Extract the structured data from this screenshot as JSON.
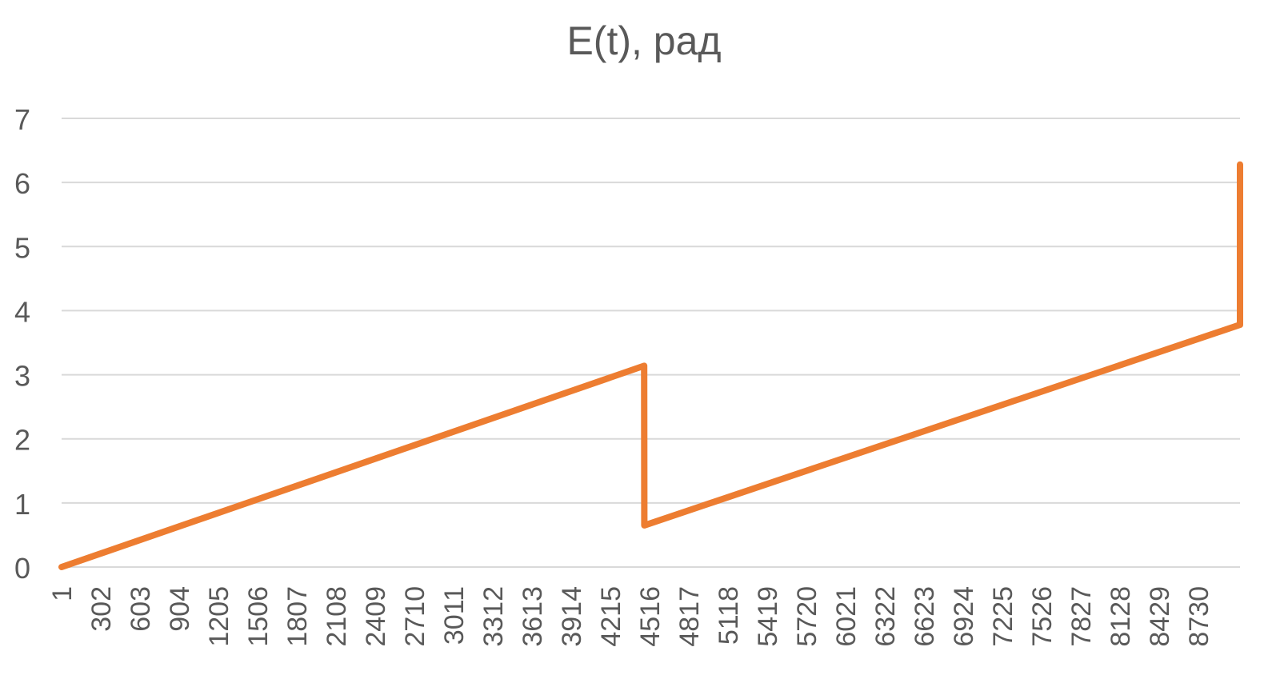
{
  "chart_data": {
    "type": "line",
    "title": "E(t), рад",
    "xlabel": "",
    "ylabel": "",
    "ylim": [
      0,
      7
    ],
    "yticks": [
      0,
      1,
      2,
      3,
      4,
      5,
      6,
      7
    ],
    "grid": true,
    "legend": "none",
    "x_range": [
      1,
      9000
    ],
    "xtick_labels": [
      "1",
      "302",
      "603",
      "904",
      "1205",
      "1506",
      "1807",
      "2108",
      "2409",
      "2710",
      "3011",
      "3312",
      "3613",
      "3914",
      "4215",
      "4516",
      "4817",
      "5118",
      "5419",
      "5720",
      "6021",
      "6322",
      "6623",
      "6924",
      "7225",
      "7526",
      "7827",
      "8128",
      "8429",
      "8730"
    ],
    "series": [
      {
        "color": "#ED7D31",
        "points": [
          [
            1,
            0.0
          ],
          [
            4450,
            3.14
          ],
          [
            4451,
            0.65
          ],
          [
            9000,
            3.78
          ],
          [
            9000,
            6.28
          ]
        ]
      }
    ]
  }
}
